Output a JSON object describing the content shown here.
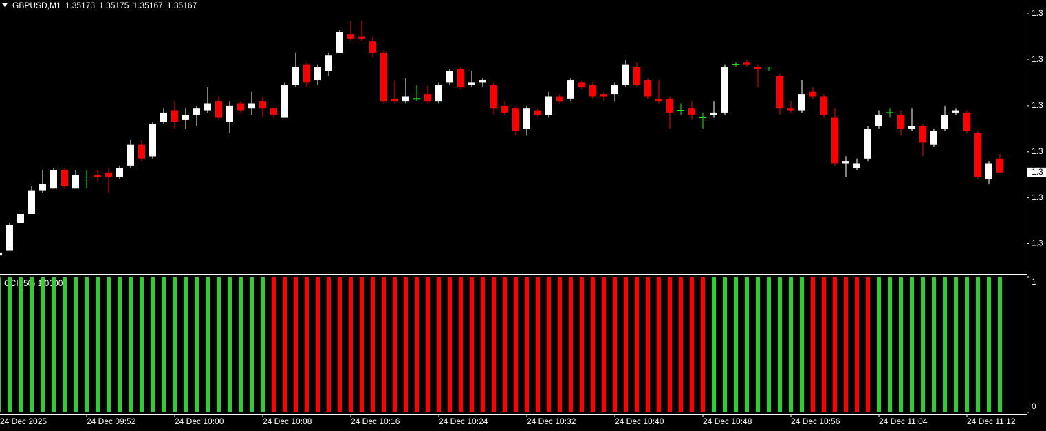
{
  "chart_data": [
    {
      "type": "candlestick",
      "title": "GBPUSD,M1",
      "header_values": [
        1.35173,
        1.35175,
        1.35167,
        1.35167
      ],
      "up_color": "#ffffff",
      "down_color": "#ff0000",
      "doji_color": "#00ff00",
      "categories": [
        "24 Dec 2025",
        null,
        null,
        null,
        null,
        null,
        null,
        null,
        "24 Dec 09:52",
        null,
        null,
        null,
        null,
        null,
        null,
        null,
        "24 Dec 10:00",
        null,
        null,
        null,
        null,
        null,
        null,
        null,
        "24 Dec 10:08",
        null,
        null,
        null,
        null,
        null,
        null,
        null,
        "24 Dec 10:16",
        null,
        null,
        null,
        null,
        null,
        null,
        null,
        "24 Dec 10:24",
        null,
        null,
        null,
        null,
        null,
        null,
        null,
        "24 Dec 10:32",
        null,
        null,
        null,
        null,
        null,
        null,
        null,
        "24 Dec 10:40",
        null,
        null,
        null,
        null,
        null,
        null,
        null,
        "24 Dec 10:48",
        null,
        null,
        null,
        null,
        null,
        null,
        null,
        "24 Dec 10:56",
        null,
        null,
        null,
        null,
        null,
        null,
        null,
        "24 Dec 11:04",
        null,
        null,
        null,
        null,
        null,
        null,
        null,
        "24 Dec 11:12",
        null,
        null,
        null
      ],
      "open": [
        1.35131,
        1.35133,
        1.35145,
        1.35149,
        1.35159,
        1.3516,
        1.35168,
        1.3516,
        1.35165,
        1.35166,
        1.35167,
        1.35165,
        1.3517,
        1.35179,
        1.35174,
        1.35189,
        1.35194,
        1.3519,
        1.35192,
        1.35194,
        1.35198,
        1.35189,
        1.35197,
        1.35195,
        1.35198,
        1.35195,
        1.35191,
        1.35205,
        1.35214,
        1.35207,
        1.35211,
        1.35219,
        1.35227,
        1.35226,
        1.35224,
        1.35219,
        1.35199,
        1.35198,
        1.35199,
        1.35201,
        1.35198,
        1.35206,
        1.35212,
        1.35205,
        1.35206,
        1.35205,
        1.35196,
        1.35195,
        1.35186,
        1.35194,
        1.35192,
        1.352,
        1.35199,
        1.35206,
        1.35205,
        1.35201,
        1.35201,
        1.35205,
        1.35213,
        1.35207,
        1.35199,
        1.35199,
        1.35194,
        1.35195,
        1.35191,
        1.35192,
        1.35193,
        1.35214,
        1.35215,
        1.35213,
        1.35212,
        1.35209,
        1.35195,
        1.35194,
        1.35202,
        1.352,
        1.35191,
        1.35171,
        1.35169,
        1.35173,
        1.35187,
        1.35193,
        1.35192,
        1.35186,
        1.35187,
        1.35179,
        1.35186,
        1.35193,
        1.35193,
        1.35184,
        1.35164,
        1.35173
      ],
      "high": [
        1.35133,
        1.35145,
        1.35149,
        1.35161,
        1.35168,
        1.35169,
        1.35169,
        1.35168,
        1.35168,
        1.35168,
        1.35169,
        1.3517,
        1.35181,
        1.35181,
        1.35189,
        1.35195,
        1.35198,
        1.35195,
        1.35196,
        1.35204,
        1.352,
        1.35198,
        1.35198,
        1.35202,
        1.352,
        1.35195,
        1.35206,
        1.35219,
        1.35215,
        1.35214,
        1.35219,
        1.35229,
        1.35233,
        1.35233,
        1.35226,
        1.3522,
        1.35207,
        1.35208,
        1.35205,
        1.35205,
        1.35206,
        1.35212,
        1.35213,
        1.35211,
        1.35208,
        1.35206,
        1.35198,
        1.35196,
        1.35196,
        1.35195,
        1.35202,
        1.35201,
        1.35208,
        1.35207,
        1.35206,
        1.35202,
        1.35206,
        1.35216,
        1.35215,
        1.35208,
        1.35207,
        1.352,
        1.35197,
        1.35198,
        1.35193,
        1.35198,
        1.35214,
        1.35215,
        1.35216,
        1.35214,
        1.35213,
        1.3521,
        1.35198,
        1.35207,
        1.35204,
        1.35201,
        1.35195,
        1.35174,
        1.35173,
        1.35187,
        1.35194,
        1.35195,
        1.35194,
        1.35195,
        1.35188,
        1.35186,
        1.35196,
        1.35195,
        1.35194,
        1.35185,
        1.35172,
        1.35175
      ],
      "low": [
        1.35131,
        1.35133,
        1.35145,
        1.35149,
        1.35158,
        1.3516,
        1.3516,
        1.3516,
        1.3516,
        1.35163,
        1.35158,
        1.35164,
        1.35169,
        1.35172,
        1.35173,
        1.35188,
        1.35186,
        1.35186,
        1.35187,
        1.35193,
        1.3519,
        1.35184,
        1.35193,
        1.35192,
        1.35191,
        1.35191,
        1.35191,
        1.35204,
        1.35204,
        1.35205,
        1.35209,
        1.35219,
        1.35224,
        1.35224,
        1.35217,
        1.35197,
        1.35197,
        1.35197,
        1.35198,
        1.35197,
        1.35197,
        1.35205,
        1.35203,
        1.35204,
        1.35204,
        1.35192,
        1.35192,
        1.35183,
        1.35183,
        1.35191,
        1.35191,
        1.35197,
        1.35198,
        1.35203,
        1.35199,
        1.35198,
        1.35198,
        1.35204,
        1.35204,
        1.35199,
        1.35197,
        1.35186,
        1.35192,
        1.3519,
        1.35186,
        1.35191,
        1.35192,
        1.35213,
        1.35213,
        1.35204,
        1.35211,
        1.35192,
        1.35193,
        1.35193,
        1.35199,
        1.35191,
        1.3517,
        1.35165,
        1.35168,
        1.35172,
        1.35186,
        1.35191,
        1.35183,
        1.35185,
        1.35174,
        1.35178,
        1.35185,
        1.35192,
        1.35184,
        1.35164,
        1.35162,
        1.35167
      ],
      "close": [
        1.35132,
        1.35144,
        1.35149,
        1.35159,
        1.35162,
        1.35168,
        1.35161,
        1.35166,
        1.35165,
        1.35165,
        1.35165,
        1.35169,
        1.35179,
        1.35173,
        1.35188,
        1.35193,
        1.35189,
        1.35192,
        1.35195,
        1.35197,
        1.35191,
        1.35196,
        1.35194,
        1.35197,
        1.35195,
        1.35192,
        1.35205,
        1.35213,
        1.35206,
        1.35213,
        1.35218,
        1.35228,
        1.35225,
        1.35225,
        1.35219,
        1.35198,
        1.35198,
        1.352,
        1.35199,
        1.35198,
        1.35205,
        1.35211,
        1.35204,
        1.35206,
        1.35207,
        1.35195,
        1.35193,
        1.35185,
        1.35195,
        1.35192,
        1.352,
        1.35198,
        1.35207,
        1.35204,
        1.352,
        1.352,
        1.35205,
        1.35214,
        1.35205,
        1.352,
        1.35198,
        1.35193,
        1.35194,
        1.35192,
        1.35191,
        1.35193,
        1.35213,
        1.35214,
        1.35214,
        1.35212,
        1.35212,
        1.35195,
        1.35194,
        1.35201,
        1.352,
        1.35192,
        1.35171,
        1.35172,
        1.35171,
        1.35186,
        1.35192,
        1.35193,
        1.35186,
        1.35187,
        1.3518,
        1.35185,
        1.35192,
        1.35194,
        1.35185,
        1.35165,
        1.35171,
        1.35167
      ],
      "ylim": [
        1.35123,
        1.35242
      ],
      "yticks": [
        {
          "value": 1.35236,
          "label": "1.3"
        },
        {
          "value": 1.35216,
          "label": "1.3"
        },
        {
          "value": 1.35196,
          "label": "1.3"
        },
        {
          "value": 1.35176,
          "label": "1.3"
        },
        {
          "value": 1.35156,
          "label": "1.3"
        },
        {
          "value": 1.35136,
          "label": "1.3"
        }
      ],
      "price_marker": {
        "value": 1.35167,
        "label": "1.3"
      }
    },
    {
      "type": "bar",
      "title": "CCI (50) 1.0000",
      "values": [
        1,
        1,
        1,
        1,
        1,
        1,
        1,
        1,
        1,
        1,
        1,
        1,
        1,
        1,
        1,
        1,
        1,
        1,
        1,
        1,
        1,
        1,
        1,
        1,
        1,
        1,
        1,
        1,
        1,
        1,
        1,
        1,
        1,
        1,
        1,
        1,
        1,
        1,
        1,
        1,
        1,
        1,
        1,
        1,
        1,
        1,
        1,
        1,
        1,
        1,
        1,
        1,
        1,
        1,
        1,
        1,
        1,
        1,
        1,
        1,
        1,
        1,
        1,
        1,
        1,
        1,
        1,
        1,
        1,
        1,
        1,
        1,
        1,
        1,
        1,
        1,
        1,
        1,
        1,
        1,
        1,
        1,
        1,
        1,
        1,
        1,
        1,
        1,
        1,
        1,
        1,
        1
      ],
      "colors": [
        "#33cc33",
        "#33cc33",
        "#33cc33",
        "#33cc33",
        "#33cc33",
        "#33cc33",
        "#33cc33",
        "#33cc33",
        "#33cc33",
        "#33cc33",
        "#33cc33",
        "#33cc33",
        "#33cc33",
        "#33cc33",
        "#33cc33",
        "#33cc33",
        "#33cc33",
        "#33cc33",
        "#33cc33",
        "#33cc33",
        "#33cc33",
        "#33cc33",
        "#33cc33",
        "#33cc33",
        "#33cc33",
        "#ff0000",
        "#ff0000",
        "#ff0000",
        "#ff0000",
        "#ff0000",
        "#ff0000",
        "#ff0000",
        "#ff0000",
        "#ff0000",
        "#ff0000",
        "#ff0000",
        "#ff0000",
        "#ff0000",
        "#ff0000",
        "#ff0000",
        "#ff0000",
        "#ff0000",
        "#ff0000",
        "#ff0000",
        "#ff0000",
        "#ff0000",
        "#ff0000",
        "#ff0000",
        "#ff0000",
        "#ff0000",
        "#ff0000",
        "#ff0000",
        "#ff0000",
        "#ff0000",
        "#ff0000",
        "#ff0000",
        "#ff0000",
        "#ff0000",
        "#ff0000",
        "#ff0000",
        "#ff0000",
        "#ff0000",
        "#ff0000",
        "#ff0000",
        "#ff0000",
        "#33cc33",
        "#33cc33",
        "#33cc33",
        "#33cc33",
        "#33cc33",
        "#33cc33",
        "#33cc33",
        "#33cc33",
        "#33cc33",
        "#ff0000",
        "#ff0000",
        "#ff0000",
        "#ff0000",
        "#ff0000",
        "#ff0000",
        "#33cc33",
        "#33cc33",
        "#33cc33",
        "#33cc33",
        "#33cc33",
        "#33cc33",
        "#33cc33",
        "#33cc33",
        "#33cc33",
        "#33cc33",
        "#33cc33",
        "#33cc33"
      ],
      "ylim": [
        0,
        1
      ],
      "yticks": [
        0,
        1
      ]
    }
  ]
}
